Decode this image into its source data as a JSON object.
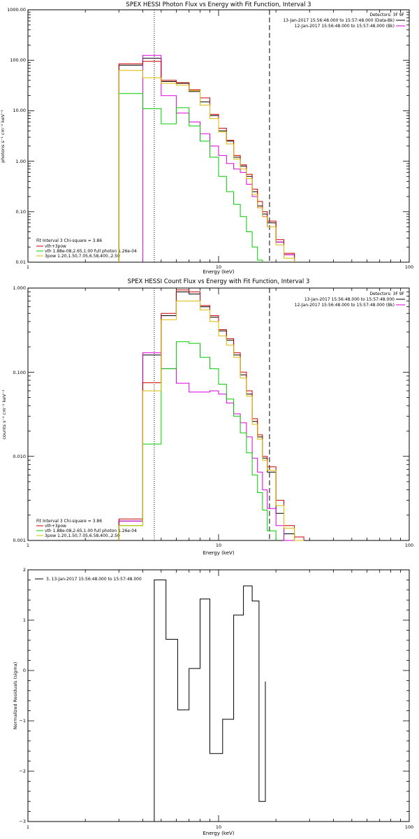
{
  "charts": {
    "photon": {
      "title": "SPEX HESSI Photon Flux vs Energy with Fit Function, Interval 3",
      "xlabel": "Energy (keV)",
      "ylabel": "photons s⁻¹ cm⁻² keV⁻¹",
      "detectors": "Detectors: 3F 9F",
      "time_labels": [
        "13-Jan-2017 15:56:48.000 to 15:57:48.000 (Data-Bk)",
        "12-Jan-2017 15:56:48.000 to 15:57:48.000 (Bk)"
      ],
      "fit_header": "Fit Interval 3   Chi-square = 3.86",
      "fit_legend": [
        "vth+3pow",
        "vth 1.88e-08,2.65,1.00  full photon 1.26e-04",
        "3pow 1.20,1.50,7.05,6.58,400.,2.50"
      ],
      "x_ticks": [
        "1",
        "10",
        "100"
      ],
      "y_ticks": [
        "0.01",
        "0.10",
        "1.00",
        "10.00",
        "100.00",
        "1000.00"
      ]
    },
    "count": {
      "title": "SPEX HESSI Count Flux vs Energy with Fit Function, Interval 3",
      "xlabel": "Energy (keV)",
      "ylabel": "counts s⁻¹ cm⁻² keV⁻¹",
      "detectors": "Detectors: 3F 9F",
      "time_labels": [
        "13-Jan-2017 15:56:48.000 to 15:57:48.000",
        "12-Jan-2017 15:56:48.000 to 15:57:48.000 (Bk)"
      ],
      "fit_header": "Fit Interval 3   Chi-square = 3.86",
      "fit_legend": [
        "vth+3pow",
        "vth 1.88e-08,2.65,1.00  full photon 1.26e-04",
        "3pow 1.20,1.50,7.05,6.58,400.,2.50"
      ],
      "x_ticks": [
        "1",
        "10",
        "100"
      ],
      "y_ticks": [
        "0.001",
        "0.010",
        "0.100",
        "1.000"
      ]
    },
    "resid": {
      "xlabel": "Energy (keV)",
      "ylabel": "Normalized Residuals (sigma)",
      "legend": "3, 13-Jan-2017 15:56:48.000 to 15:57:48.000",
      "x_ticks": [
        "1",
        "10",
        "100"
      ],
      "y_ticks": [
        "−3",
        "−2",
        "−1",
        "0",
        "1",
        "2"
      ]
    }
  },
  "chart_data": [
    {
      "type": "line",
      "title": "SPEX HESSI Photon Flux vs Energy with Fit Function, Interval 3",
      "xlabel": "Energy (keV)",
      "ylabel": "photons s⁻¹ cm⁻² keV⁻¹",
      "xscale": "log",
      "yscale": "log",
      "xlim": [
        1,
        100
      ],
      "ylim": [
        0.01,
        1000
      ],
      "vlines": [
        {
          "x": 4.6,
          "style": "dotted"
        },
        {
          "x": 18.5,
          "style": "dashed"
        }
      ],
      "bin_edges": [
        3,
        4,
        5,
        6,
        7,
        8,
        9,
        10,
        11,
        12,
        13,
        14,
        15,
        16,
        17,
        18,
        20,
        22,
        25
      ],
      "series": [
        {
          "name": "",
          "color": "#000000",
          "values": [
            80,
            110,
            38,
            35,
            24,
            15,
            8,
            4,
            2.5,
            1.2,
            0.8,
            0.5,
            0.25,
            0.13,
            0.09,
            0.06,
            0.025,
            0.014
          ]
        },
        {
          "name": "",
          "color": "#dd00dd",
          "values": [
            null,
            125,
            20,
            9,
            6,
            3.5,
            2,
            1.3,
            0.9,
            0.7,
            0.6,
            0.35,
            0.2,
            0.12,
            0.08,
            0.05,
            0.025,
            0.014
          ]
        },
        {
          "name": "vth+3pow",
          "color": "#cc0000",
          "values": [
            85,
            95,
            40,
            36,
            26,
            18,
            8.5,
            4.5,
            2.6,
            1.3,
            0.85,
            0.55,
            0.28,
            0.16,
            0.1,
            0.065,
            0.028,
            0.015
          ]
        },
        {
          "name": "vth 1.88e-08,2.65,1.00  full photon 1.26e-04",
          "color": "#00cc00",
          "values": [
            22,
            11,
            5.5,
            11.5,
            5,
            2.5,
            1.2,
            0.5,
            0.25,
            0.14,
            0.08,
            0.04,
            0.02,
            0.011,
            null,
            null,
            null,
            null
          ]
        },
        {
          "name": "3pow 1.20,1.50,7.05,6.58,400.,2.50",
          "color": "#ddbb00",
          "values": [
            63,
            45,
            35,
            32,
            25,
            13,
            7,
            3.8,
            2.2,
            1.1,
            0.7,
            0.45,
            0.22,
            0.12,
            0.08,
            0.05,
            0.022,
            0.012
          ]
        }
      ]
    },
    {
      "type": "line",
      "title": "SPEX HESSI Count Flux vs Energy with Fit Function, Interval 3",
      "xlabel": "Energy (keV)",
      "ylabel": "counts s⁻¹ cm⁻² keV⁻¹",
      "xscale": "log",
      "yscale": "log",
      "xlim": [
        1,
        100
      ],
      "ylim": [
        0.001,
        1
      ],
      "vlines": [
        {
          "x": 4.6,
          "style": "dotted"
        },
        {
          "x": 18.5,
          "style": "dashed"
        }
      ],
      "bin_edges": [
        3,
        4,
        5,
        6,
        7,
        8,
        9,
        10,
        11,
        12,
        13,
        14,
        15,
        16,
        17,
        18,
        20,
        22,
        25,
        28
      ],
      "series": [
        {
          "name": "",
          "color": "#000000",
          "values": [
            0.0017,
            0.16,
            0.47,
            0.9,
            0.85,
            0.6,
            0.45,
            0.31,
            0.24,
            0.16,
            0.093,
            0.055,
            0.026,
            0.017,
            0.0095,
            0.0065,
            0.0021,
            0.0012,
            0.001
          ]
        },
        {
          "name": "",
          "color": "#dd00dd",
          "values": [
            0.0017,
            0.17,
            0.11,
            0.074,
            0.058,
            0.058,
            0.06,
            0.055,
            0.043,
            0.032,
            0.025,
            0.017,
            0.0095,
            0.0065,
            0.004,
            0.0024,
            0.0015,
            0.001,
            null
          ]
        },
        {
          "name": "vth+3pow",
          "color": "#cc0000",
          "values": [
            0.0018,
            0.075,
            0.5,
            0.95,
            0.9,
            0.62,
            0.47,
            0.32,
            0.25,
            0.17,
            0.1,
            0.06,
            0.028,
            0.018,
            0.01,
            0.0075,
            0.003,
            0.0015,
            0.0011
          ]
        },
        {
          "name": "vth 1.88e-08,2.65,1.00  full photon 1.26e-04",
          "color": "#00cc00",
          "values": [
            0.0015,
            0.014,
            0.11,
            0.23,
            0.22,
            0.15,
            0.11,
            0.072,
            0.048,
            0.03,
            0.019,
            0.011,
            0.006,
            0.0037,
            0.0023,
            0.0013,
            null,
            null,
            null
          ]
        },
        {
          "name": "3pow 1.20,1.50,7.05,6.58,400.,2.50",
          "color": "#ddbb00",
          "values": [
            0.0015,
            0.06,
            0.42,
            0.7,
            0.7,
            0.55,
            0.4,
            0.27,
            0.21,
            0.15,
            0.085,
            0.052,
            0.024,
            0.016,
            0.009,
            0.0068,
            0.0026,
            0.0014,
            0.001
          ]
        }
      ]
    },
    {
      "type": "line",
      "xlabel": "Energy (keV)",
      "ylabel": "Normalized Residuals (sigma)",
      "xscale": "log",
      "yscale": "linear",
      "xlim": [
        1,
        100
      ],
      "ylim": [
        -3,
        2
      ],
      "bin_edges": [
        4.6,
        5.3,
        6.1,
        7,
        8,
        9,
        10.5,
        12,
        13.5,
        15,
        16.3,
        17.6
      ],
      "series": [
        {
          "name": "3, 13-Jan-2017 15:56:48.000 to 15:57:48.000",
          "color": "#000000",
          "values": [
            1.8,
            0.62,
            -0.78,
            0.04,
            1.42,
            -1.65,
            -0.97,
            1.1,
            1.68,
            1.38,
            -2.6,
            -0.22
          ]
        }
      ]
    }
  ]
}
